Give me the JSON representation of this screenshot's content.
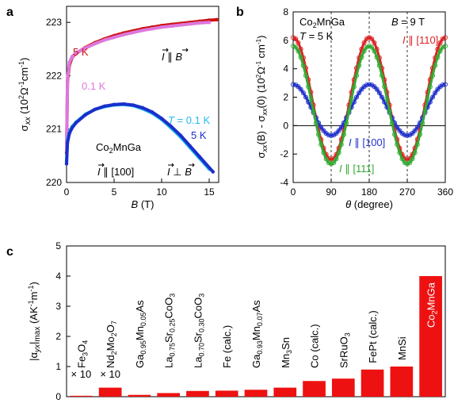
{
  "chart_data": [
    {
      "panel": "a",
      "type": "scatter",
      "xlabel": "B (T)",
      "ylabel": "σxx (10²Ω⁻¹cm⁻¹)",
      "xlim": [
        0,
        16
      ],
      "ylim": [
        220,
        223.3
      ],
      "xticks": [
        "0",
        "5",
        "10",
        "15"
      ],
      "yticks": [
        "220",
        "221",
        "222",
        "223"
      ],
      "series": [
        {
          "name": "5 K",
          "color": "#cc1111",
          "x": [
            0,
            0.1,
            0.3,
            0.6,
            1,
            2,
            3,
            4,
            5,
            6,
            7,
            8,
            9,
            10,
            11,
            12,
            13,
            14,
            15,
            15.8
          ],
          "y": [
            220.55,
            221.9,
            222.2,
            222.35,
            222.42,
            222.53,
            222.62,
            222.69,
            222.75,
            222.8,
            222.84,
            222.88,
            222.91,
            222.94,
            222.96,
            222.98,
            223.0,
            223.02,
            223.04,
            223.05
          ]
        },
        {
          "name": "0.1 K",
          "color": "#dd77dd",
          "x": [
            0,
            0.1,
            0.3,
            0.6,
            1,
            2,
            3,
            4,
            5,
            6,
            7,
            8,
            9,
            10,
            11,
            12,
            13,
            14,
            15
          ],
          "y": [
            220.6,
            221.95,
            222.25,
            222.36,
            222.43,
            222.52,
            222.6,
            222.67,
            222.72,
            222.77,
            222.81,
            222.85,
            222.88,
            222.91,
            222.93,
            222.95,
            222.97,
            222.99,
            223.0
          ]
        },
        {
          "name": "T = 0.1 K",
          "color": "#22bbee",
          "x": [
            0,
            0.1,
            0.3,
            0.6,
            1,
            2,
            3,
            4,
            5,
            6,
            7,
            8,
            9,
            10,
            11,
            12,
            13,
            14,
            15
          ],
          "y": [
            220.4,
            220.8,
            220.95,
            221.05,
            221.13,
            221.28,
            221.37,
            221.42,
            221.45,
            221.46,
            221.44,
            221.38,
            221.3,
            221.18,
            221.02,
            220.85,
            220.65,
            220.45,
            220.25
          ]
        },
        {
          "name": "5 K",
          "color": "#1a2fcc",
          "x": [
            0,
            0.1,
            0.3,
            0.6,
            1,
            2,
            3,
            4,
            5,
            6,
            7,
            8,
            9,
            10,
            11,
            12,
            13,
            14,
            15.4
          ],
          "y": [
            220.35,
            220.75,
            220.92,
            221.03,
            221.12,
            221.27,
            221.37,
            221.43,
            221.46,
            221.47,
            221.45,
            221.4,
            221.32,
            221.2,
            221.05,
            220.88,
            220.68,
            220.48,
            220.2
          ]
        }
      ],
      "annotations": {
        "sample": "Co₂MnGa",
        "current": "I ∥ [100]",
        "par": "I ∥ B",
        "perp": "I ⊥ B"
      }
    },
    {
      "panel": "b",
      "type": "scatter",
      "xlabel": "θ (degree)",
      "ylabel": "σxx(B) - σxx(0) (10²Ω⁻¹cm⁻¹)",
      "xlim": [
        0,
        360
      ],
      "ylim": [
        -4,
        8
      ],
      "xticks": [
        "0",
        "90",
        "180",
        "270",
        "360"
      ],
      "yticks": [
        "-4",
        "-2",
        "0",
        "2",
        "4",
        "6",
        "8"
      ],
      "series": [
        {
          "name": "I ∥ [110]",
          "color": "#dd2222",
          "offset": 1.9,
          "amplitude": 4.3
        },
        {
          "name": "I ∥ [100]",
          "color": "#2233cc",
          "offset": 1.1,
          "amplitude": 1.8
        },
        {
          "name": "I ∥ [111]",
          "color": "#33aa33",
          "offset": 1.45,
          "amplitude": 4.15
        }
      ],
      "dashed_lines_x": [
        90,
        180,
        270
      ],
      "annotations": {
        "sample": "Co₂MnGa",
        "field": "B = 9 T",
        "temp": "T = 5 K"
      }
    },
    {
      "panel": "c",
      "type": "bar",
      "ylabel": "|αyx|max (AK⁻¹m⁻¹)",
      "ylim": [
        0,
        5
      ],
      "yticks": [
        "0",
        "1",
        "2",
        "3",
        "4",
        "5"
      ],
      "color": "#ee1111",
      "categories": [
        "Fe3O4",
        "Nd2Mo2O7",
        "Ga0.95Mn0.05As",
        "La0.75Sr0.25CoO3",
        "La0.70Sr0.30CoO3",
        "Fe (calc.)",
        "Ga0.93Mn0.07As",
        "Mn3Sn",
        "Co (calc.)",
        "SrRuO3",
        "FePt (calc.)",
        "MnSi",
        "Co2MnGa"
      ],
      "values": [
        0.03,
        0.3,
        0.06,
        0.12,
        0.19,
        0.2,
        0.23,
        0.3,
        0.52,
        0.6,
        0.9,
        1.0,
        4.0
      ],
      "multipliers": [
        "× 10",
        "× 10"
      ]
    }
  ],
  "labels": {
    "panel_a": "a",
    "panel_b": "b",
    "panel_c": "c"
  }
}
